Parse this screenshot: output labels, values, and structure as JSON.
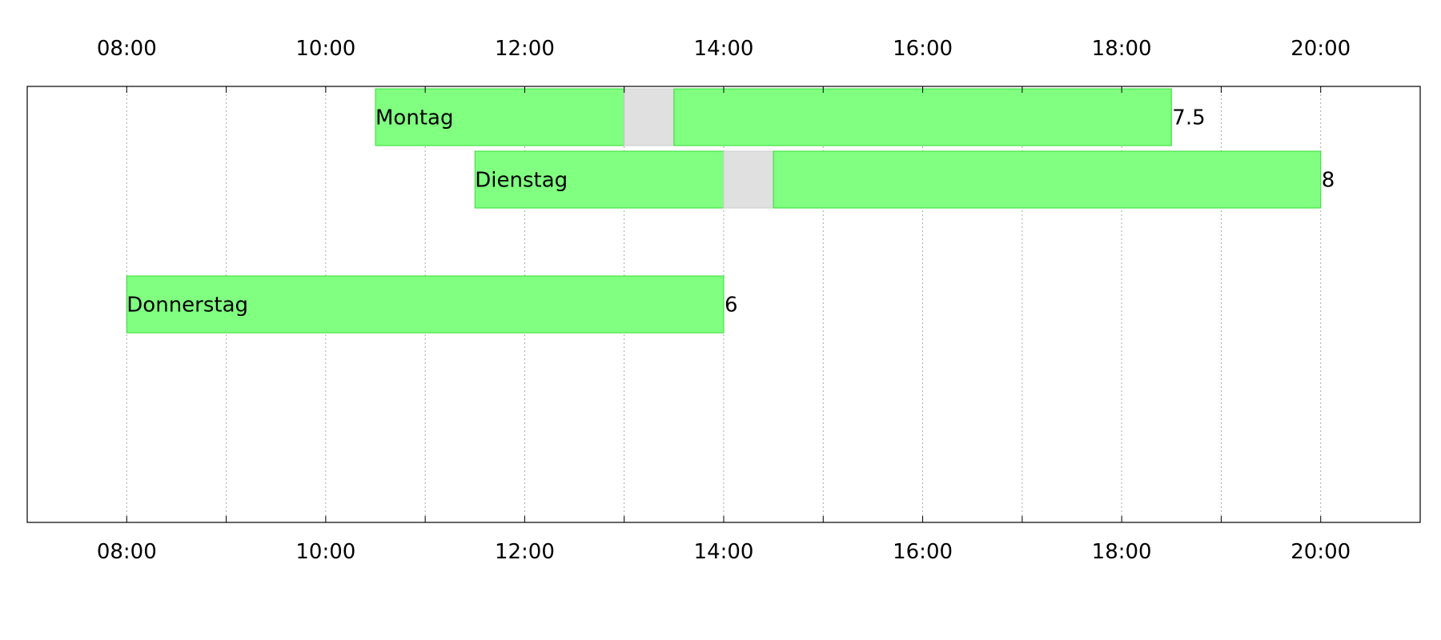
{
  "chart_data": {
    "type": "bar",
    "orientation": "horizontal-timeline",
    "title": "",
    "xlabel": "",
    "ylabel": "",
    "x_axis": {
      "ticks": [
        "08:00",
        "10:00",
        "12:00",
        "14:00",
        "16:00",
        "18:00",
        "20:00"
      ],
      "range": [
        "07:00",
        "21:00"
      ],
      "minor_grid_step_hours": 1,
      "grid": true,
      "labels_top": true,
      "labels_bottom": true
    },
    "rows": [
      {
        "label": "Montag",
        "total": "7.5",
        "segments": [
          {
            "start": "10:30",
            "end": "13:00",
            "kind": "work"
          },
          {
            "start": "13:00",
            "end": "13:30",
            "kind": "break"
          },
          {
            "start": "13:30",
            "end": "18:30",
            "kind": "work"
          }
        ]
      },
      {
        "label": "Dienstag",
        "total": "8",
        "segments": [
          {
            "start": "11:30",
            "end": "14:00",
            "kind": "work"
          },
          {
            "start": "14:00",
            "end": "14:30",
            "kind": "break"
          },
          {
            "start": "14:30",
            "end": "20:00",
            "kind": "work"
          }
        ]
      },
      {
        "label": "",
        "total": "",
        "segments": []
      },
      {
        "label": "Donnerstag",
        "total": "6",
        "segments": [
          {
            "start": "08:00",
            "end": "14:00",
            "kind": "work"
          }
        ]
      },
      {
        "label": "",
        "total": "",
        "segments": []
      },
      {
        "label": "",
        "total": "",
        "segments": []
      },
      {
        "label": "",
        "total": "",
        "segments": []
      }
    ],
    "colors": {
      "work": "#80ff80",
      "work_border": "#33dd33",
      "break": "#e0e0e0",
      "frame": "#000000",
      "grid": "#aaaaaa"
    }
  }
}
